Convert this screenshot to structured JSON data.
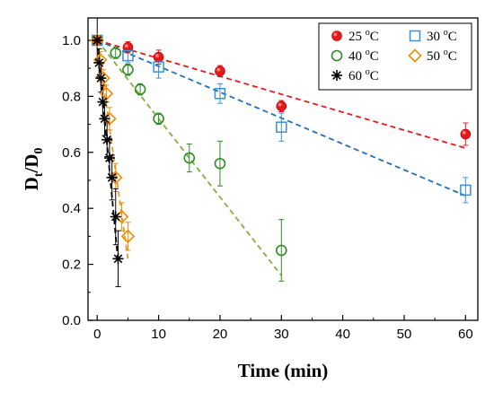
{
  "chart_data": {
    "type": "scatter",
    "xlabel": "Time (min)",
    "ylabel": {
      "base": "D",
      "sub1": "t",
      "slash": "/D",
      "sub2": "0"
    },
    "xlim": [
      -1.5,
      62
    ],
    "ylim": [
      0.0,
      1.08
    ],
    "xticks": [
      0,
      10,
      20,
      30,
      40,
      50,
      60
    ],
    "yticks": [
      0.0,
      0.2,
      0.4,
      0.6,
      0.8,
      1.0
    ],
    "xtick_labels": [
      "0",
      "10",
      "20",
      "30",
      "40",
      "50",
      "60"
    ],
    "ytick_labels": [
      "0.0",
      "0.2",
      "0.4",
      "0.6",
      "0.8",
      "1.0"
    ],
    "legend_position": "top-right",
    "series": [
      {
        "name": "25 ºC",
        "name_num": "25 ",
        "name_deg": "o",
        "name_unit": "C",
        "marker": "filled-circle",
        "color": "#e31a1c",
        "x": [
          0,
          5,
          10,
          20,
          30,
          60
        ],
        "y": [
          1.0,
          0.975,
          0.94,
          0.89,
          0.765,
          0.665
        ],
        "err": [
          0.015,
          0.02,
          0.025,
          0.02,
          0.02,
          0.04
        ],
        "fit": {
          "x": [
            0,
            60
          ],
          "y": [
            1.0,
            0.615
          ],
          "color": "#e8191c"
        }
      },
      {
        "name": "30 ºC",
        "name_num": "30 ",
        "name_deg": "o",
        "name_unit": "C",
        "marker": "open-square",
        "color": "#3a8fd9",
        "x": [
          0,
          5,
          10,
          20,
          30,
          60
        ],
        "y": [
          1.0,
          0.945,
          0.905,
          0.81,
          0.69,
          0.465
        ],
        "err": [
          0.015,
          0.025,
          0.04,
          0.035,
          0.05,
          0.045
        ],
        "fit": {
          "x": [
            0,
            60
          ],
          "y": [
            1.0,
            0.445
          ],
          "color": "#1f6fb8"
        }
      },
      {
        "name": "40 ºC",
        "name_num": "40 ",
        "name_deg": "o",
        "name_unit": "C",
        "marker": "open-circle",
        "color": "#2e8b22",
        "x": [
          0,
          3,
          5,
          7,
          10,
          15,
          20,
          30
        ],
        "y": [
          1.0,
          0.955,
          0.895,
          0.825,
          0.72,
          0.58,
          0.56,
          0.25
        ],
        "err": [
          0.015,
          0.02,
          0.02,
          0.02,
          0.02,
          0.05,
          0.08,
          0.11
        ],
        "fit": {
          "x": [
            0,
            30
          ],
          "y": [
            1.0,
            0.16
          ],
          "color": "#7fb23a"
        }
      },
      {
        "name": "50 ºC",
        "name_num": "50 ",
        "name_deg": "o",
        "name_unit": "C",
        "marker": "open-diamond",
        "color": "#f08c00",
        "x": [
          0,
          0.5,
          1,
          1.5,
          2,
          3,
          4,
          5
        ],
        "y": [
          1.0,
          0.93,
          0.865,
          0.81,
          0.72,
          0.51,
          0.37,
          0.3
        ],
        "err": [
          0.015,
          0.03,
          0.03,
          0.03,
          0.04,
          0.05,
          0.05,
          0.05
        ],
        "fit": {
          "x": [
            0,
            5
          ],
          "y": [
            1.0,
            0.22
          ],
          "color": "#e89a2a"
        }
      },
      {
        "name": "60 ºC",
        "name_num": "60 ",
        "name_deg": "o",
        "name_unit": "C",
        "marker": "asterisk",
        "color": "#000000",
        "x": [
          0,
          0.3,
          0.6,
          0.9,
          1.2,
          1.6,
          2.0,
          2.4,
          3.0,
          3.4
        ],
        "y": [
          1.0,
          0.92,
          0.865,
          0.78,
          0.72,
          0.645,
          0.58,
          0.51,
          0.37,
          0.22
        ],
        "err": [
          0.08,
          0.05,
          0.05,
          0.06,
          0.06,
          0.06,
          0.07,
          0.08,
          0.1,
          0.1
        ],
        "fit": {
          "x": [
            0,
            3.4
          ],
          "y": [
            1.0,
            0.21
          ],
          "color": "#000000"
        }
      }
    ]
  }
}
